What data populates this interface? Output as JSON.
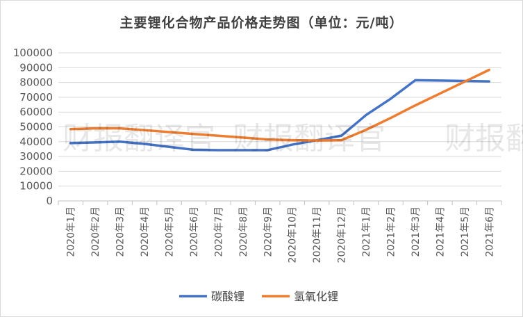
{
  "chart_data": {
    "type": "line",
    "title": "主要锂化合物产品价格走势图（单位：元/吨）",
    "categories": [
      "2020年1月",
      "2020年2月",
      "2020年3月",
      "2020年4月",
      "2020年5月",
      "2020年6月",
      "2020年7月",
      "2020年8月",
      "2020年9月",
      "2020年10月",
      "2020年11月",
      "2020年12月",
      "2021年1月",
      "2021年2月",
      "2021年3月",
      "2021年4月",
      "2021年5月",
      "2021年6月"
    ],
    "series": [
      {
        "name": "碳酸锂",
        "color": "#4472c4",
        "values": [
          39000,
          39500,
          40000,
          38500,
          36500,
          34500,
          34300,
          34300,
          34300,
          38000,
          41000,
          44000,
          58000,
          69000,
          81500,
          81300,
          81000,
          80700
        ]
      },
      {
        "name": "氢氧化锂",
        "color": "#ed7d31",
        "values": [
          48500,
          49000,
          49000,
          47800,
          46500,
          45200,
          44000,
          42800,
          41500,
          41000,
          40800,
          41000,
          48000,
          56000,
          64500,
          72500,
          80500,
          88500
        ]
      }
    ],
    "ylim": [
      0,
      100000
    ],
    "yticks": [
      "0",
      "10000",
      "20000",
      "30000",
      "40000",
      "50000",
      "60000",
      "70000",
      "80000",
      "90000",
      "100000"
    ],
    "xlabel": "",
    "ylabel": "",
    "grid": true,
    "legend": "bottom"
  },
  "watermark": "财报翻译官"
}
